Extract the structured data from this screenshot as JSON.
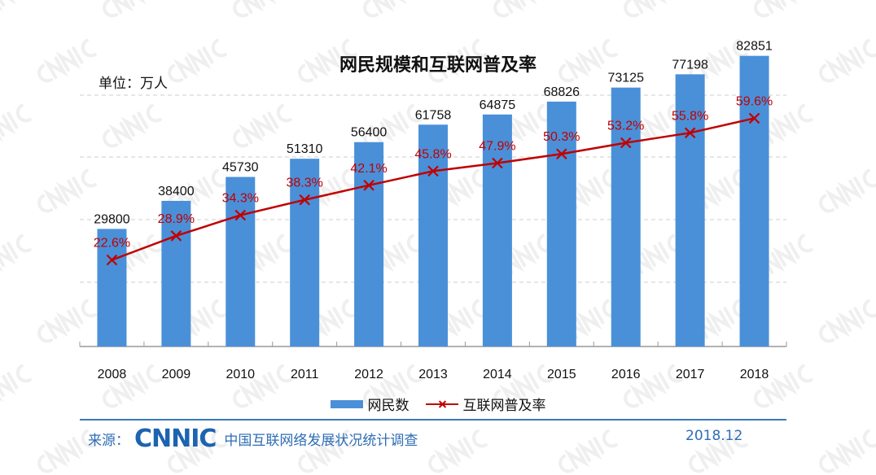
{
  "chart_data": {
    "type": "bar",
    "title": "网民规模和互联网普及率",
    "unit_label": "单位：万人",
    "xlabel": "",
    "ylabel": "",
    "categories": [
      "2008",
      "2009",
      "2010",
      "2011",
      "2012",
      "2013",
      "2014",
      "2015",
      "2016",
      "2017",
      "2018"
    ],
    "series": [
      {
        "name": "网民数",
        "type": "bar",
        "color": "#4a90d9",
        "values": [
          29800,
          38400,
          45730,
          51310,
          56400,
          61758,
          64875,
          68826,
          73125,
          77198,
          82851
        ],
        "labels": [
          "29800",
          "38400",
          "45730",
          "51310",
          "56400",
          "61758",
          "64875",
          "68826",
          "73125",
          "77198",
          "82851"
        ]
      },
      {
        "name": "互联网普及率",
        "type": "line",
        "color": "#c00000",
        "marker": "x",
        "values": [
          22.6,
          28.9,
          34.3,
          38.3,
          42.1,
          45.8,
          47.9,
          50.3,
          53.2,
          55.8,
          59.6
        ],
        "labels": [
          "22.6%",
          "28.9%",
          "34.3%",
          "38.3%",
          "42.1%",
          "45.8%",
          "47.9%",
          "50.3%",
          "53.2%",
          "55.8%",
          "59.6%"
        ]
      }
    ],
    "ylim": [
      -6250,
      90000
    ],
    "y2lim": [
      0,
      82
    ],
    "grid": true,
    "legend_position": "bottom"
  },
  "footer": {
    "source_prefix": "来源：",
    "logo_text": "CNNIC",
    "source_text": "中国互联网络发展状况统计调查",
    "date": "2018.12"
  },
  "watermark": "CNNIC"
}
